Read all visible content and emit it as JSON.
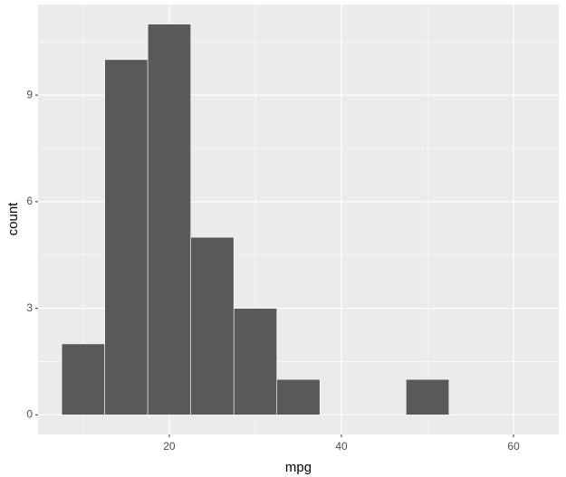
{
  "chart_data": {
    "type": "histogram",
    "bins": [
      7.5,
      12.5,
      17.5,
      22.5,
      27.5,
      32.5,
      37.5,
      42.5,
      47.5,
      52.5,
      57.5,
      62.5
    ],
    "values": [
      2,
      10,
      11,
      5,
      3,
      1,
      0,
      0,
      1,
      0,
      0
    ],
    "color": "#595959",
    "edge_color": "#ffffff",
    "x_label": "mpg",
    "y_label": "count",
    "xlim": [
      4.75,
      65.25
    ],
    "xticks": [
      20,
      40,
      60
    ],
    "xminor": [
      10,
      30,
      50
    ],
    "ylim": [
      -0.55,
      11.55
    ],
    "yticks": [
      0,
      3,
      6,
      9
    ],
    "yminor": [
      1.5,
      4.5,
      7.5,
      10.5
    ],
    "grid": true
  }
}
